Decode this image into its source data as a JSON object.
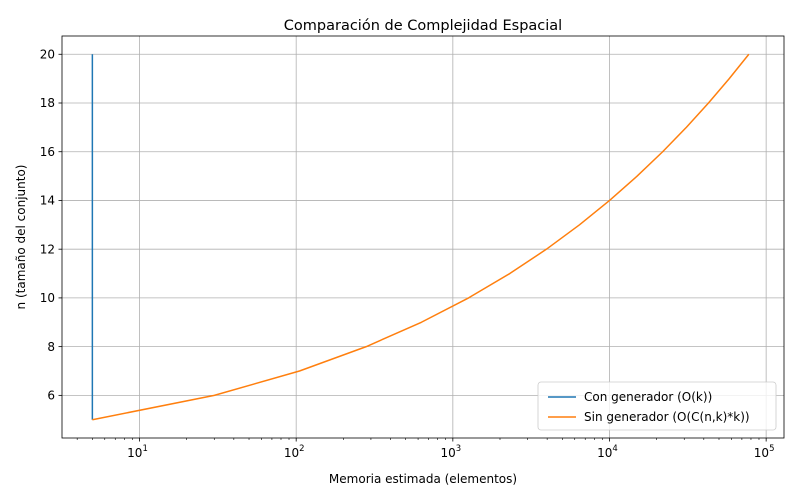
{
  "chart_data": {
    "type": "line",
    "title": "Comparación de Complejidad Espacial",
    "xlabel": "Memoria estimada (elementos)",
    "ylabel": "n (tamaño del conjunto)",
    "x_scale": "log",
    "xlim": [
      3.2,
      130000
    ],
    "ylim": [
      4.25,
      20.75
    ],
    "x_ticks": [
      {
        "value": 10,
        "base": "10",
        "exp": "1"
      },
      {
        "value": 100,
        "base": "10",
        "exp": "2"
      },
      {
        "value": 1000,
        "base": "10",
        "exp": "3"
      },
      {
        "value": 10000,
        "base": "10",
        "exp": "4"
      },
      {
        "value": 100000,
        "base": "10",
        "exp": "5"
      }
    ],
    "y_ticks": [
      "6",
      "8",
      "10",
      "12",
      "14",
      "16",
      "18",
      "20"
    ],
    "grid": true,
    "legend_position": "lower-right",
    "series": [
      {
        "name": "Con generador (O(k))",
        "color": "#1f77b4",
        "x": [
          5,
          5,
          5,
          5,
          5,
          5,
          5,
          5,
          5,
          5,
          5,
          5,
          5,
          5,
          5,
          5
        ],
        "y": [
          5,
          6,
          7,
          8,
          9,
          10,
          11,
          12,
          13,
          14,
          15,
          16,
          17,
          18,
          19,
          20
        ]
      },
      {
        "name": "Sin generador (O(C(n,k)*k))",
        "color": "#ff7f0e",
        "x": [
          5,
          30,
          105,
          280,
          630,
          1260,
          2310,
          3960,
          6435,
          10010,
          15015,
          21840,
          30940,
          42840,
          58140,
          77520
        ],
        "y": [
          5,
          6,
          7,
          8,
          9,
          10,
          11,
          12,
          13,
          14,
          15,
          16,
          17,
          18,
          19,
          20
        ]
      }
    ]
  }
}
